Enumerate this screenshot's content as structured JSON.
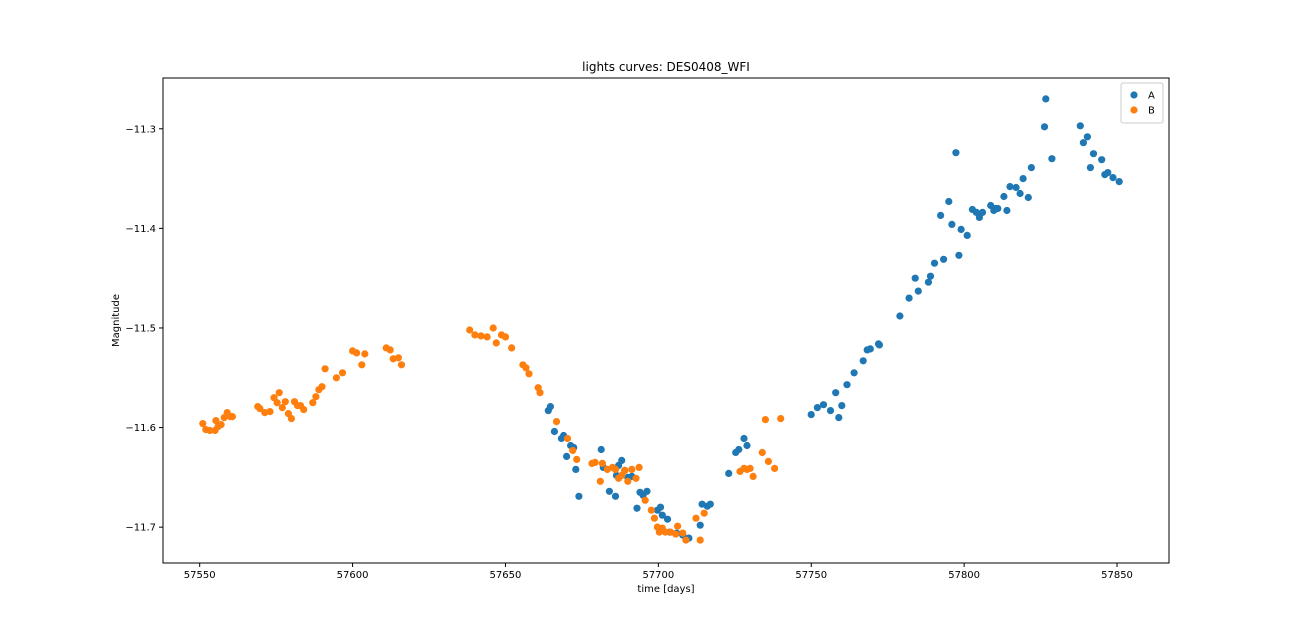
{
  "chart_data": {
    "type": "scatter",
    "title": "lights curves: DES0408_WFI",
    "xlabel": "time [days]",
    "ylabel": "Magnitude",
    "xlim": [
      57538,
      57867
    ],
    "ylim": [
      -11.736,
      -11.249
    ],
    "y_inverted": true,
    "xticks": [
      57550,
      57600,
      57650,
      57700,
      57750,
      57800,
      57850
    ],
    "xtick_labels": [
      "57550",
      "57600",
      "57650",
      "57700",
      "57750",
      "57800",
      "57850"
    ],
    "yticks": [
      -11.3,
      -11.4,
      -11.5,
      -11.6,
      -11.7
    ],
    "ytick_labels": [
      "−11.3",
      "−11.4",
      "−11.5",
      "−11.6",
      "−11.7"
    ],
    "grid": false,
    "legend_position": "top-right",
    "series": [
      {
        "name": "A",
        "color": "#1f77b4",
        "points": [
          [
            57664,
            -11.583
          ],
          [
            57664.7,
            -11.579
          ],
          [
            57666,
            -11.604
          ],
          [
            57668.3,
            -11.611
          ],
          [
            57669,
            -11.608
          ],
          [
            57670,
            -11.629
          ],
          [
            57671.3,
            -11.618
          ],
          [
            57672.3,
            -11.62
          ],
          [
            57673,
            -11.642
          ],
          [
            57674,
            -11.669
          ],
          [
            57681.3,
            -11.622
          ],
          [
            57682,
            -11.64
          ],
          [
            57684,
            -11.664
          ],
          [
            57686,
            -11.669
          ],
          [
            57686.3,
            -11.648
          ],
          [
            57687,
            -11.638
          ],
          [
            57688,
            -11.633
          ],
          [
            57689,
            -11.643
          ],
          [
            57690,
            -11.65
          ],
          [
            57691.3,
            -11.649
          ],
          [
            57693,
            -11.681
          ],
          [
            57694,
            -11.665
          ],
          [
            57695,
            -11.668
          ],
          [
            57696.3,
            -11.664
          ],
          [
            57699.7,
            -11.683
          ],
          [
            57700.7,
            -11.68
          ],
          [
            57701.3,
            -11.688
          ],
          [
            57703,
            -11.692
          ],
          [
            57703.7,
            -11.705
          ],
          [
            57706,
            -11.706
          ],
          [
            57708,
            -11.708
          ],
          [
            57710,
            -11.711
          ],
          [
            57713.7,
            -11.698
          ],
          [
            57714.3,
            -11.677
          ],
          [
            57716,
            -11.679
          ],
          [
            57717,
            -11.677
          ],
          [
            57723,
            -11.646
          ],
          [
            57725.3,
            -11.625
          ],
          [
            57726.3,
            -11.622
          ],
          [
            57728,
            -11.611
          ],
          [
            57729,
            -11.618
          ],
          [
            57750,
            -11.587
          ],
          [
            57752,
            -11.58
          ],
          [
            57754,
            -11.577
          ],
          [
            57756.3,
            -11.583
          ],
          [
            57758,
            -11.565
          ],
          [
            57759,
            -11.59
          ],
          [
            57760,
            -11.578
          ],
          [
            57761.7,
            -11.557
          ],
          [
            57764,
            -11.545
          ],
          [
            57767,
            -11.533
          ],
          [
            57768.3,
            -11.522
          ],
          [
            57769.3,
            -11.521
          ],
          [
            57772,
            -11.516
          ],
          [
            57772.3,
            -11.517
          ],
          [
            57779,
            -11.488
          ],
          [
            57782,
            -11.47
          ],
          [
            57784,
            -11.45
          ],
          [
            57785,
            -11.463
          ],
          [
            57788.3,
            -11.454
          ],
          [
            57789,
            -11.448
          ],
          [
            57790.3,
            -11.435
          ],
          [
            57792.3,
            -11.387
          ],
          [
            57793.3,
            -11.431
          ],
          [
            57795,
            -11.373
          ],
          [
            57796,
            -11.396
          ],
          [
            57797.3,
            -11.324
          ],
          [
            57798.3,
            -11.427
          ],
          [
            57799,
            -11.401
          ],
          [
            57801,
            -11.407
          ],
          [
            57802.7,
            -11.381
          ],
          [
            57804,
            -11.384
          ],
          [
            57805,
            -11.389
          ],
          [
            57806,
            -11.384
          ],
          [
            57808.7,
            -11.377
          ],
          [
            57809.7,
            -11.382
          ],
          [
            57810.3,
            -11.38
          ],
          [
            57811,
            -11.38
          ],
          [
            57813,
            -11.368
          ],
          [
            57814,
            -11.382
          ],
          [
            57815,
            -11.358
          ],
          [
            57817,
            -11.359
          ],
          [
            57818.3,
            -11.365
          ],
          [
            57819.3,
            -11.35
          ],
          [
            57821,
            -11.369
          ],
          [
            57822,
            -11.339
          ],
          [
            57826.3,
            -11.298
          ],
          [
            57826.7,
            -11.27
          ],
          [
            57828.7,
            -11.33
          ],
          [
            57838,
            -11.297
          ],
          [
            57839,
            -11.314
          ],
          [
            57840.3,
            -11.308
          ],
          [
            57841.3,
            -11.339
          ],
          [
            57842.3,
            -11.325
          ],
          [
            57845,
            -11.331
          ],
          [
            57846,
            -11.346
          ],
          [
            57847,
            -11.344
          ],
          [
            57848.7,
            -11.349
          ],
          [
            57850.7,
            -11.353
          ]
        ]
      },
      {
        "name": "B",
        "color": "#ff7f0e",
        "points": [
          [
            57551,
            -11.596
          ],
          [
            57552,
            -11.602
          ],
          [
            57553.3,
            -11.603
          ],
          [
            57555,
            -11.603
          ],
          [
            57555.3,
            -11.593
          ],
          [
            57556,
            -11.599
          ],
          [
            57557,
            -11.597
          ],
          [
            57558,
            -11.59
          ],
          [
            57559,
            -11.585
          ],
          [
            57560,
            -11.589
          ],
          [
            57560.7,
            -11.589
          ],
          [
            57569,
            -11.579
          ],
          [
            57569.7,
            -11.581
          ],
          [
            57571.3,
            -11.585
          ],
          [
            57573,
            -11.584
          ],
          [
            57574.3,
            -11.57
          ],
          [
            57575.3,
            -11.575
          ],
          [
            57576,
            -11.565
          ],
          [
            57577,
            -11.58
          ],
          [
            57578,
            -11.574
          ],
          [
            57579,
            -11.586
          ],
          [
            57580,
            -11.591
          ],
          [
            57581,
            -11.574
          ],
          [
            57582,
            -11.578
          ],
          [
            57583,
            -11.578
          ],
          [
            57584,
            -11.582
          ],
          [
            57587,
            -11.575
          ],
          [
            57588,
            -11.569
          ],
          [
            57589,
            -11.562
          ],
          [
            57590,
            -11.559
          ],
          [
            57591,
            -11.541
          ],
          [
            57594.7,
            -11.55
          ],
          [
            57596.7,
            -11.545
          ],
          [
            57600,
            -11.523
          ],
          [
            57601.3,
            -11.525
          ],
          [
            57603,
            -11.537
          ],
          [
            57604,
            -11.526
          ],
          [
            57611,
            -11.52
          ],
          [
            57612.3,
            -11.522
          ],
          [
            57613.3,
            -11.531
          ],
          [
            57615,
            -11.53
          ],
          [
            57616,
            -11.537
          ],
          [
            57638.3,
            -11.502
          ],
          [
            57640,
            -11.507
          ],
          [
            57642,
            -11.508
          ],
          [
            57644,
            -11.509
          ],
          [
            57646,
            -11.5
          ],
          [
            57647,
            -11.515
          ],
          [
            57648.7,
            -11.507
          ],
          [
            57650,
            -11.509
          ],
          [
            57652,
            -11.52
          ],
          [
            57655.7,
            -11.537
          ],
          [
            57656.7,
            -11.54
          ],
          [
            57657.7,
            -11.546
          ],
          [
            57660.7,
            -11.56
          ],
          [
            57661.3,
            -11.565
          ],
          [
            57666.7,
            -11.594
          ],
          [
            57670.3,
            -11.611
          ],
          [
            57672,
            -11.623
          ],
          [
            57673.3,
            -11.632
          ],
          [
            57678.3,
            -11.636
          ],
          [
            57679.3,
            -11.635
          ],
          [
            57681,
            -11.654
          ],
          [
            57681.7,
            -11.636
          ],
          [
            57683.3,
            -11.642
          ],
          [
            57685,
            -11.64
          ],
          [
            57686,
            -11.642
          ],
          [
            57687,
            -11.651
          ],
          [
            57688,
            -11.648
          ],
          [
            57689,
            -11.643
          ],
          [
            57690,
            -11.654
          ],
          [
            57691.3,
            -11.642
          ],
          [
            57692.7,
            -11.651
          ],
          [
            57693.7,
            -11.64
          ],
          [
            57695.7,
            -11.673
          ],
          [
            57697.7,
            -11.683
          ],
          [
            57698.7,
            -11.691
          ],
          [
            57699.7,
            -11.7
          ],
          [
            57700.3,
            -11.705
          ],
          [
            57701.3,
            -11.701
          ],
          [
            57702.3,
            -11.705
          ],
          [
            57704,
            -11.705
          ],
          [
            57705.7,
            -11.707
          ],
          [
            57706.3,
            -11.699
          ],
          [
            57708,
            -11.706
          ],
          [
            57709,
            -11.713
          ],
          [
            57712.3,
            -11.691
          ],
          [
            57713.7,
            -11.713
          ],
          [
            57715,
            -11.686
          ],
          [
            57726.7,
            -11.644
          ],
          [
            57728,
            -11.641
          ],
          [
            57729,
            -11.642
          ],
          [
            57730,
            -11.641
          ],
          [
            57731,
            -11.649
          ],
          [
            57734,
            -11.625
          ],
          [
            57735,
            -11.592
          ],
          [
            57736,
            -11.634
          ],
          [
            57738,
            -11.641
          ],
          [
            57740,
            -11.591
          ]
        ]
      }
    ]
  }
}
